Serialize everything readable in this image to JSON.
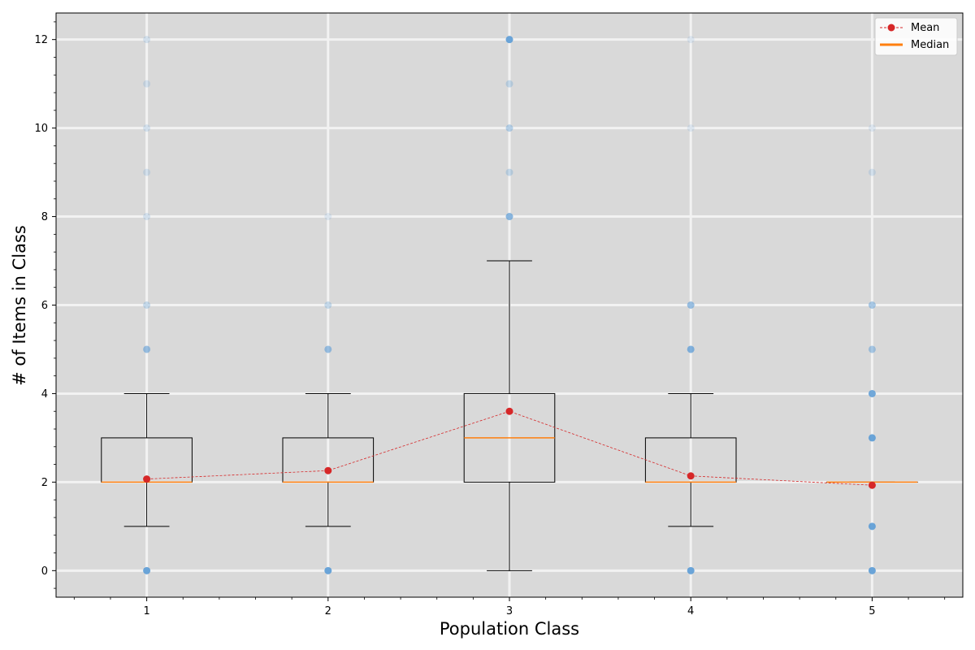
{
  "chart_data": {
    "type": "box",
    "xlabel": "Population Class",
    "ylabel": "# of Items in Class",
    "categories": [
      "1",
      "2",
      "3",
      "4",
      "5"
    ],
    "ylim": [
      -0.6,
      12.6
    ],
    "xlim": [
      0.5,
      5.5
    ],
    "yticks": [
      0,
      2,
      4,
      6,
      8,
      10,
      12
    ],
    "grid": true,
    "background": "#d9d9d9",
    "legend": {
      "position": "top-right",
      "entries": [
        {
          "label": "Mean",
          "kind": "line-marker",
          "color": "#d62728"
        },
        {
          "label": "Median",
          "kind": "line",
          "color": "#ff7f0e"
        }
      ]
    },
    "boxes": [
      {
        "category": "1",
        "whisker_low": 1,
        "q1": 2,
        "median": 2,
        "q3": 3,
        "whisker_high": 4,
        "mean": 2.07
      },
      {
        "category": "2",
        "whisker_low": 1,
        "q1": 2,
        "median": 2,
        "q3": 3,
        "whisker_high": 4,
        "mean": 2.26
      },
      {
        "category": "3",
        "whisker_low": 0,
        "q1": 2,
        "median": 3,
        "q3": 4,
        "whisker_high": 7,
        "mean": 3.6
      },
      {
        "category": "4",
        "whisker_low": 1,
        "q1": 2,
        "median": 2,
        "q3": 3,
        "whisker_high": 4,
        "mean": 2.14
      },
      {
        "category": "5",
        "whisker_low": 2,
        "q1": 2,
        "median": 2,
        "q3": 2,
        "whisker_high": 2,
        "mean": 1.93
      }
    ],
    "points": [
      {
        "category": "1",
        "values": [
          0,
          5,
          6,
          8,
          9,
          10,
          11,
          12
        ],
        "opacity": [
          0.9,
          0.6,
          0.3,
          0.2,
          0.2,
          0.2,
          0.2,
          0.2
        ]
      },
      {
        "category": "2",
        "values": [
          0,
          5,
          6,
          8
        ],
        "opacity": [
          0.9,
          0.6,
          0.3,
          0.15
        ]
      },
      {
        "category": "3",
        "values": [
          8,
          9,
          10,
          11,
          12
        ],
        "opacity": [
          0.7,
          0.3,
          0.4,
          0.3,
          0.9
        ]
      },
      {
        "category": "4",
        "values": [
          0,
          5,
          6,
          10,
          12
        ],
        "opacity": [
          0.9,
          0.75,
          0.6,
          0.15,
          0.15
        ]
      },
      {
        "category": "5",
        "values": [
          0,
          1,
          3,
          4,
          5,
          6,
          9,
          10
        ],
        "opacity": [
          0.9,
          0.9,
          0.9,
          0.85,
          0.5,
          0.5,
          0.2,
          0.15
        ]
      }
    ],
    "colors": {
      "mean": "#d62728",
      "median": "#ff7f0e",
      "points": "#5b9bd5",
      "box": "#000000",
      "grid": "#f2f2f2"
    }
  }
}
